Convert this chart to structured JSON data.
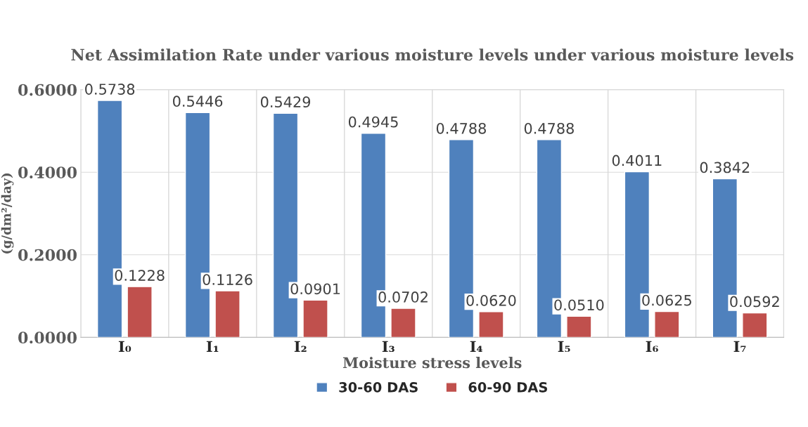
{
  "chart_data": {
    "type": "bar",
    "title": "Net Assimilation Rate under various moisture levels under various moisture levels",
    "xlabel": "Moisture stress levels",
    "ylabel": "(g/dm²/day)",
    "categories": [
      "I₀",
      "I₁",
      "I₂",
      "I₃",
      "I₄",
      "I₅",
      "I₆",
      "I₇"
    ],
    "series": [
      {
        "name": "30-60 DAS",
        "color": "#4f81bd",
        "values": [
          0.5738,
          0.5446,
          0.5429,
          0.4945,
          0.4788,
          0.4788,
          0.4011,
          0.3842
        ],
        "value_labels": [
          "0.5738",
          "0.5446",
          "0.5429",
          "0.4945",
          "0.4788",
          "0.4788",
          "0.4011",
          "0.3842"
        ]
      },
      {
        "name": "60-90 DAS",
        "color": "#c0504d",
        "values": [
          0.1228,
          0.1126,
          0.0901,
          0.0702,
          0.062,
          0.051,
          0.0625,
          0.0592
        ],
        "value_labels": [
          "0.1228",
          "0.1126",
          "0.0901",
          "0.0702",
          "0.0620",
          "0.0510",
          "0.0625",
          "0.0592"
        ]
      }
    ],
    "ylim": [
      0,
      0.6
    ],
    "yticks": [
      {
        "value": 0,
        "label": "0.0000"
      },
      {
        "value": 0.2,
        "label": "0.2000"
      },
      {
        "value": 0.4,
        "label": "0.4000"
      },
      {
        "value": 0.6,
        "label": "0.6000"
      }
    ],
    "grid": true,
    "legend": "bottom"
  }
}
